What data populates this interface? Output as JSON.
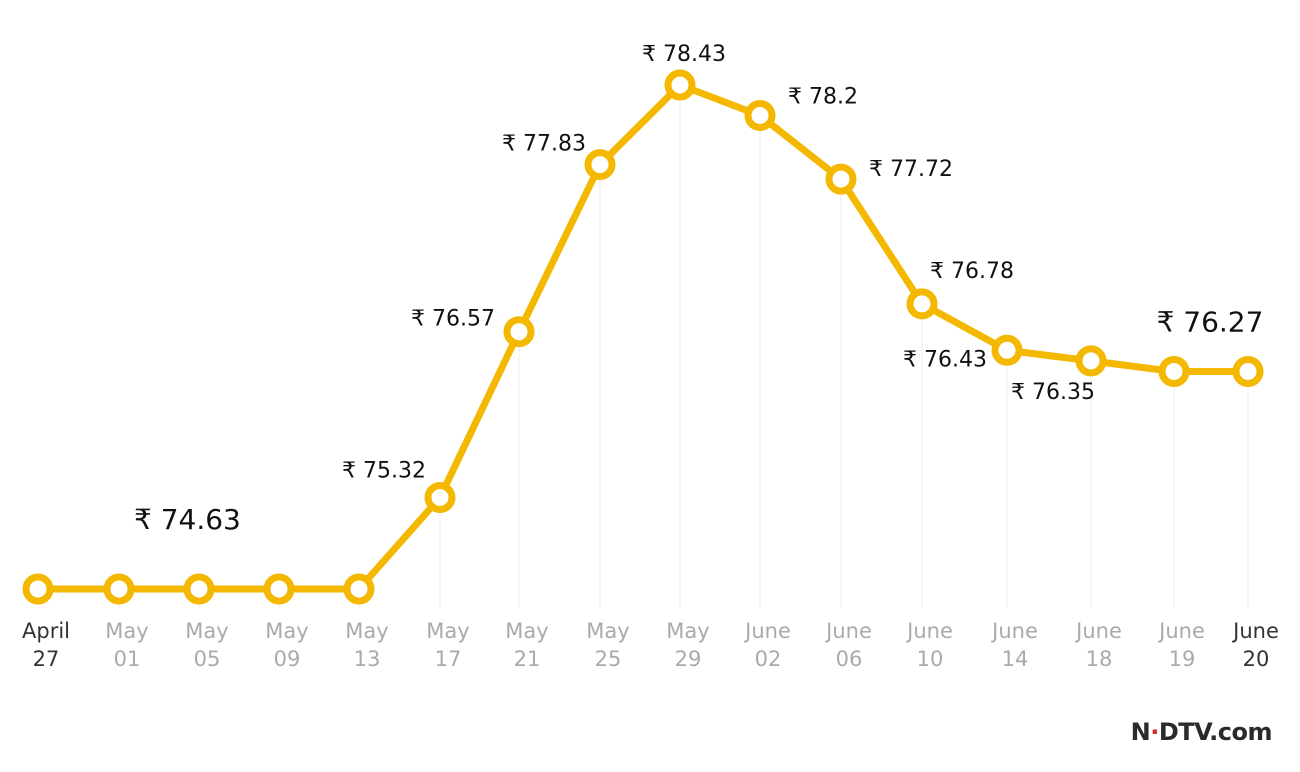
{
  "chart_data": {
    "type": "line",
    "currency_symbol": "₹",
    "categories": [
      [
        "April",
        "27"
      ],
      [
        "May",
        "01"
      ],
      [
        "May",
        "05"
      ],
      [
        "May",
        "09"
      ],
      [
        "May",
        "13"
      ],
      [
        "May",
        "17"
      ],
      [
        "May",
        "21"
      ],
      [
        "May",
        "25"
      ],
      [
        "May",
        "29"
      ],
      [
        "June",
        "02"
      ],
      [
        "June",
        "06"
      ],
      [
        "June",
        "10"
      ],
      [
        "June",
        "14"
      ],
      [
        "June",
        "18"
      ],
      [
        "June",
        "19"
      ],
      [
        "June",
        "20"
      ]
    ],
    "emphasized_categories": [
      0,
      15
    ],
    "values": [
      74.63,
      74.63,
      74.63,
      74.63,
      74.63,
      75.32,
      76.57,
      77.83,
      78.43,
      78.2,
      77.72,
      76.78,
      76.43,
      76.35,
      76.27,
      76.27
    ],
    "data_labels": [
      {
        "index": 1,
        "text": "₹ 74.63",
        "highlight": true
      },
      {
        "index": 5,
        "text": "₹ 75.32",
        "highlight": false
      },
      {
        "index": 6,
        "text": "₹ 76.57",
        "highlight": false
      },
      {
        "index": 7,
        "text": "₹ 77.83",
        "highlight": false
      },
      {
        "index": 8,
        "text": "₹ 78.43",
        "highlight": false
      },
      {
        "index": 9,
        "text": "₹ 78.2",
        "highlight": false
      },
      {
        "index": 10,
        "text": "₹ 77.72",
        "highlight": false
      },
      {
        "index": 11,
        "text": "₹ 76.78",
        "highlight": false
      },
      {
        "index": 12,
        "text": "₹ 76.43",
        "highlight": false
      },
      {
        "index": 13,
        "text": "₹ 76.35",
        "highlight": false
      },
      {
        "index": 14,
        "text": "₹ 76.27",
        "highlight": true
      }
    ],
    "ylim": [
      74.63,
      78.43
    ],
    "grid": "vertical",
    "line_color": "#F4B800",
    "highlight_label_color": "#F4B800",
    "title": "",
    "xlabel": "",
    "ylabel": ""
  },
  "brand": {
    "text_before": "N",
    "accent": "·",
    "text_after": "DTV.com"
  }
}
